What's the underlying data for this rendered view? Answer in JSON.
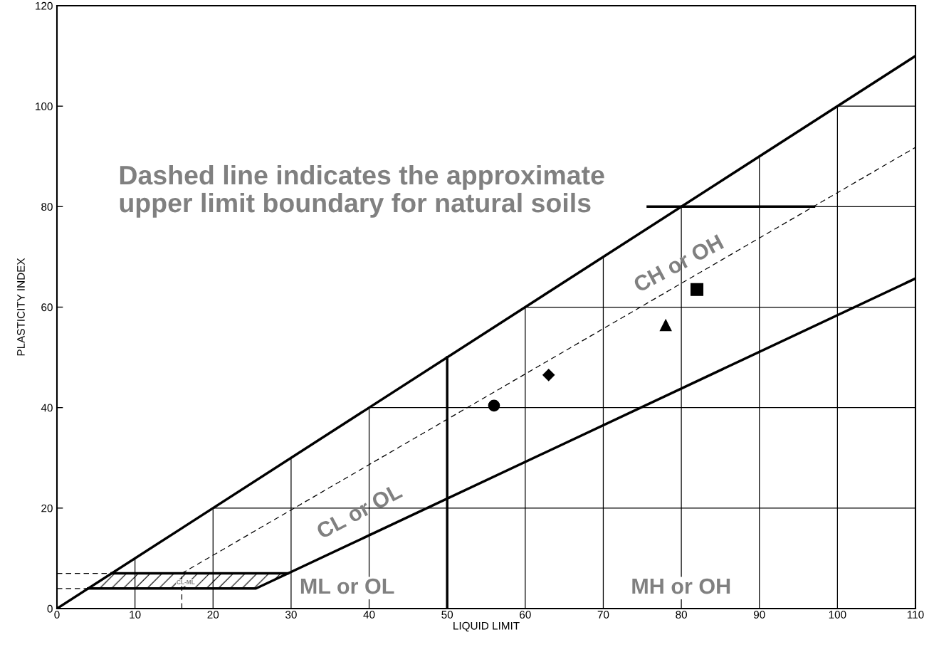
{
  "chart_data": {
    "type": "scatter",
    "xlabel": "LIQUID LIMIT",
    "ylabel": "PLASTICITY INDEX",
    "xlim": [
      0,
      110
    ],
    "ylim": [
      0,
      120
    ],
    "xticks": [
      0,
      10,
      20,
      30,
      40,
      50,
      60,
      70,
      80,
      90,
      100,
      110
    ],
    "yticks": [
      0,
      20,
      40,
      60,
      80,
      100,
      120
    ],
    "grid": true,
    "series": [
      {
        "type": "line",
        "color": "#000000",
        "line_style": "solid",
        "x": [
          0,
          110
        ],
        "values": [
          0,
          110
        ]
      },
      {
        "type": "line",
        "color": "#000000",
        "line_style": "dashed",
        "x": [
          16,
          110
        ],
        "values": [
          7,
          91.8
        ]
      },
      {
        "type": "line",
        "color": "#000000",
        "line_style": "solid",
        "x": [
          4,
          25.5,
          110
        ],
        "values": [
          4,
          4,
          65.7
        ]
      },
      {
        "type": "line",
        "color": "#000000",
        "line_style": "solid",
        "x": [
          50,
          50
        ],
        "values": [
          0,
          50
        ]
      },
      {
        "type": "line",
        "color": "#000000",
        "line_style": "solid",
        "x": [
          75.7,
          97
        ],
        "values": [
          80,
          80
        ]
      },
      {
        "type": "line",
        "color": "#000000",
        "line_style": "dashed",
        "x": [
          0,
          7
        ],
        "values": [
          7,
          7
        ]
      },
      {
        "type": "line",
        "color": "#000000",
        "line_style": "dashed",
        "x": [
          0,
          4
        ],
        "values": [
          4,
          4
        ]
      },
      {
        "type": "line",
        "color": "#000000",
        "line_style": "dashed",
        "x": [
          16,
          16
        ],
        "values": [
          0,
          7
        ]
      },
      {
        "type": "line",
        "color": "#000000",
        "line_style": "solid",
        "x": [
          7,
          29.6
        ],
        "values": [
          7,
          7
        ]
      },
      {
        "color": "#000000",
        "marker": "circle",
        "x": [
          56
        ],
        "values": [
          40.4
        ]
      },
      {
        "color": "#000000",
        "marker": "diamond",
        "x": [
          63
        ],
        "values": [
          46.5
        ]
      },
      {
        "color": "#000000",
        "marker": "triangle",
        "x": [
          78
        ],
        "values": [
          56.4
        ]
      },
      {
        "color": "#000000",
        "marker": "square",
        "x": [
          82
        ],
        "values": [
          63.5
        ]
      }
    ],
    "annotations": [
      "Dashed line indicates the approximate\nupper limit boundary for natural soils",
      "CL or OL",
      "CH or OH",
      "ML or OL",
      "MH or OH",
      "CL-ML"
    ]
  }
}
